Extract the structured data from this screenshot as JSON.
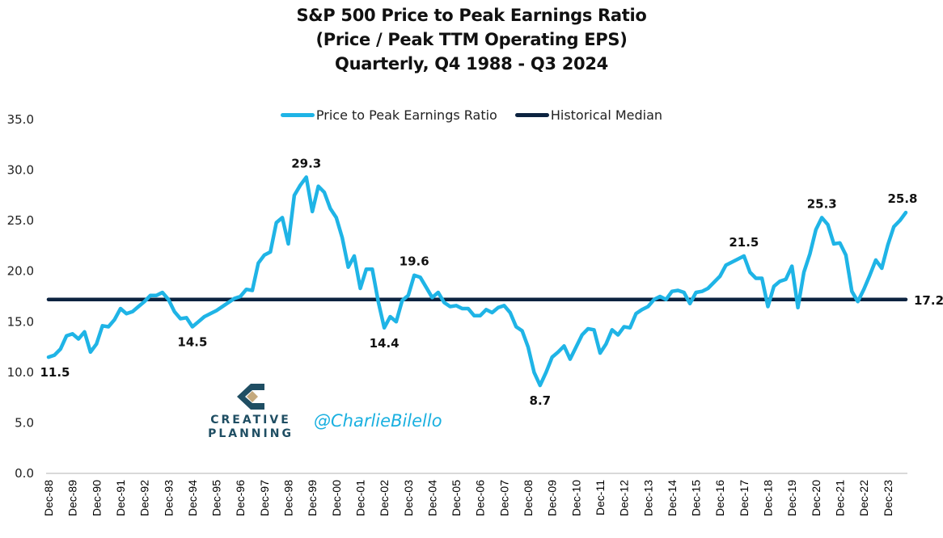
{
  "chart_data": {
    "type": "line",
    "title": [
      "S&P 500 Price to Peak Earnings Ratio",
      "(Price / Peak TTM Operating EPS)",
      "Quarterly, Q4 1988 - Q3 2024"
    ],
    "xlabel": "",
    "ylabel": "",
    "ylim": [
      0,
      35
    ],
    "yticks": [
      "0.0",
      "5.0",
      "10.0",
      "15.0",
      "20.0",
      "25.0",
      "30.0",
      "35.0"
    ],
    "ytick_values": [
      0,
      5,
      10,
      15,
      20,
      25,
      30,
      35
    ],
    "grid": false,
    "legend_position": "top-center",
    "xtick_labels": [
      "Dec-88",
      "Dec-89",
      "Dec-90",
      "Dec-91",
      "Dec-92",
      "Dec-93",
      "Dec-94",
      "Dec-95",
      "Dec-96",
      "Dec-97",
      "Dec-98",
      "Dec-99",
      "Dec-00",
      "Dec-01",
      "Dec-02",
      "Dec-03",
      "Dec-04",
      "Dec-05",
      "Dec-06",
      "Dec-07",
      "Dec-08",
      "Dec-09",
      "Dec-10",
      "Dec-11",
      "Dec-12",
      "Dec-13",
      "Dec-14",
      "Dec-15",
      "Dec-16",
      "Dec-17",
      "Dec-18",
      "Dec-19",
      "Dec-20",
      "Dec-21",
      "Dec-22",
      "Dec-23"
    ],
    "xtick_every_n_quarters": 4,
    "series": [
      {
        "name": "Price to Peak Earnings Ratio",
        "color": "#1fb4e6",
        "values": [
          11.5,
          11.7,
          12.3,
          13.6,
          13.8,
          13.3,
          14.0,
          12.0,
          12.8,
          14.6,
          14.5,
          15.2,
          16.3,
          15.8,
          16.0,
          16.5,
          17.0,
          17.6,
          17.6,
          17.9,
          17.2,
          16.0,
          15.3,
          15.4,
          14.5,
          15.0,
          15.5,
          15.8,
          16.1,
          16.5,
          16.9,
          17.3,
          17.5,
          18.2,
          18.1,
          20.8,
          21.6,
          21.9,
          24.8,
          25.3,
          22.7,
          27.5,
          28.5,
          29.3,
          25.9,
          28.4,
          27.8,
          26.2,
          25.3,
          23.3,
          20.4,
          21.5,
          18.3,
          20.2,
          20.2,
          17.0,
          14.4,
          15.5,
          15.0,
          17.1,
          17.6,
          19.6,
          19.4,
          18.4,
          17.4,
          17.9,
          16.9,
          16.5,
          16.6,
          16.3,
          16.3,
          15.6,
          15.6,
          16.2,
          15.9,
          16.4,
          16.6,
          15.9,
          14.5,
          14.1,
          12.5,
          10.0,
          8.7,
          10.0,
          11.5,
          12.0,
          12.6,
          11.3,
          12.5,
          13.7,
          14.3,
          14.2,
          11.9,
          12.8,
          14.2,
          13.7,
          14.5,
          14.4,
          15.8,
          16.2,
          16.5,
          17.2,
          17.5,
          17.2,
          18.0,
          18.1,
          17.9,
          16.8,
          17.9,
          18.0,
          18.3,
          18.9,
          19.5,
          20.6,
          20.9,
          21.2,
          21.5,
          19.9,
          19.3,
          19.3,
          16.5,
          18.5,
          19.0,
          19.2,
          20.5,
          16.4,
          19.9,
          21.7,
          24.1,
          25.3,
          24.6,
          22.7,
          22.8,
          21.6,
          18.0,
          17.0,
          18.2,
          19.6,
          21.1,
          20.3,
          22.6,
          24.4,
          25.0,
          25.8
        ]
      },
      {
        "name": "Historical Median",
        "color": "#0c2340",
        "value": 17.2
      }
    ],
    "annotations": [
      {
        "text": "11.5",
        "index": 0,
        "value": 11.5,
        "position": "below"
      },
      {
        "text": "14.5",
        "index": 24,
        "value": 14.5,
        "position": "below"
      },
      {
        "text": "29.3",
        "index": 43,
        "value": 29.3,
        "position": "above"
      },
      {
        "text": "14.4",
        "index": 56,
        "value": 14.4,
        "position": "below"
      },
      {
        "text": "19.6",
        "index": 61,
        "value": 19.6,
        "position": "above"
      },
      {
        "text": "8.7",
        "index": 82,
        "value": 8.7,
        "position": "below"
      },
      {
        "text": "21.5",
        "index": 116,
        "value": 21.5,
        "position": "above"
      },
      {
        "text": "25.3",
        "index": 129,
        "value": 25.3,
        "position": "above"
      },
      {
        "text": "25.8",
        "index": 143,
        "value": 25.8,
        "position": "above"
      },
      {
        "text": "17.2",
        "index": 143,
        "value": 17.2,
        "position": "right"
      }
    ]
  },
  "legend": {
    "items": [
      {
        "label": "Price to Peak Earnings Ratio",
        "color": "#1fb4e6"
      },
      {
        "label": "Historical Median",
        "color": "#0c2340"
      }
    ]
  },
  "watermark": {
    "logo_line1": "CREATIVE",
    "logo_line2": "PLANNING",
    "logo_icon": "creative-planning-logo-icon",
    "handle": "@CharlieBilello"
  }
}
